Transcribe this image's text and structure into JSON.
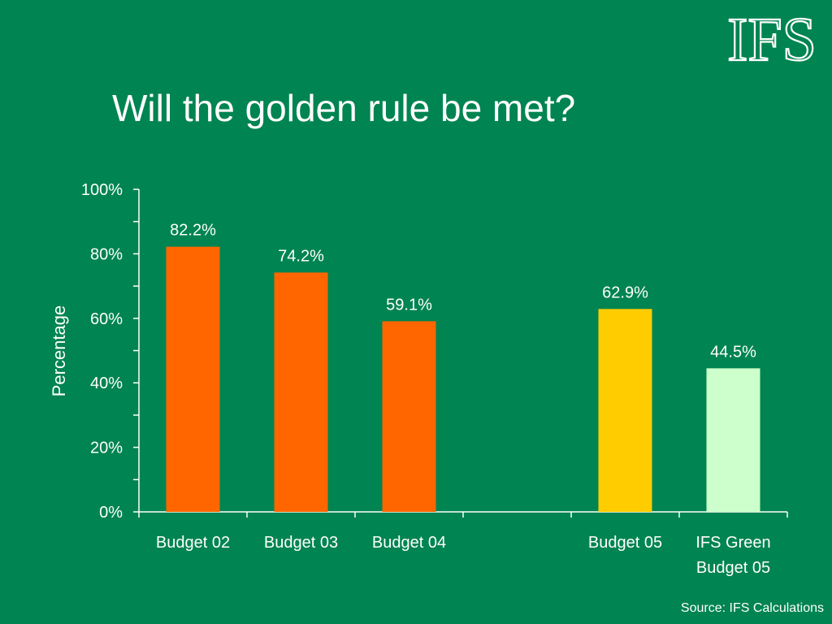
{
  "slide": {
    "title": "Will the golden rule be met?",
    "logo_text": "IFS",
    "source": "Source: IFS Calculations"
  },
  "chart_data": {
    "type": "bar",
    "ylabel": "Percentage",
    "xlabel": "",
    "ylim": [
      0,
      100
    ],
    "yticks": [
      "0%",
      "20%",
      "40%",
      "60%",
      "80%",
      "100%"
    ],
    "categories": [
      "Budget 02",
      "Budget 03",
      "Budget 04",
      "",
      "Budget 05",
      "IFS Green Budget 05"
    ],
    "category_lines": [
      [
        "Budget 02"
      ],
      [
        "Budget 03"
      ],
      [
        "Budget 04"
      ],
      [],
      [
        "Budget 05"
      ],
      [
        "IFS Green",
        "Budget 05"
      ]
    ],
    "values": [
      82.2,
      74.2,
      59.1,
      null,
      62.9,
      44.5
    ],
    "labels": [
      "82.2%",
      "74.2%",
      "59.1%",
      "",
      "62.9%",
      "44.5%"
    ],
    "colors": [
      "#ff6600",
      "#ff6600",
      "#ff6600",
      "",
      "#ffcc00",
      "#ccffcc"
    ],
    "grid": false,
    "legend": "none",
    "text_color": "#ffffff",
    "axis_color": "#ffffff"
  }
}
